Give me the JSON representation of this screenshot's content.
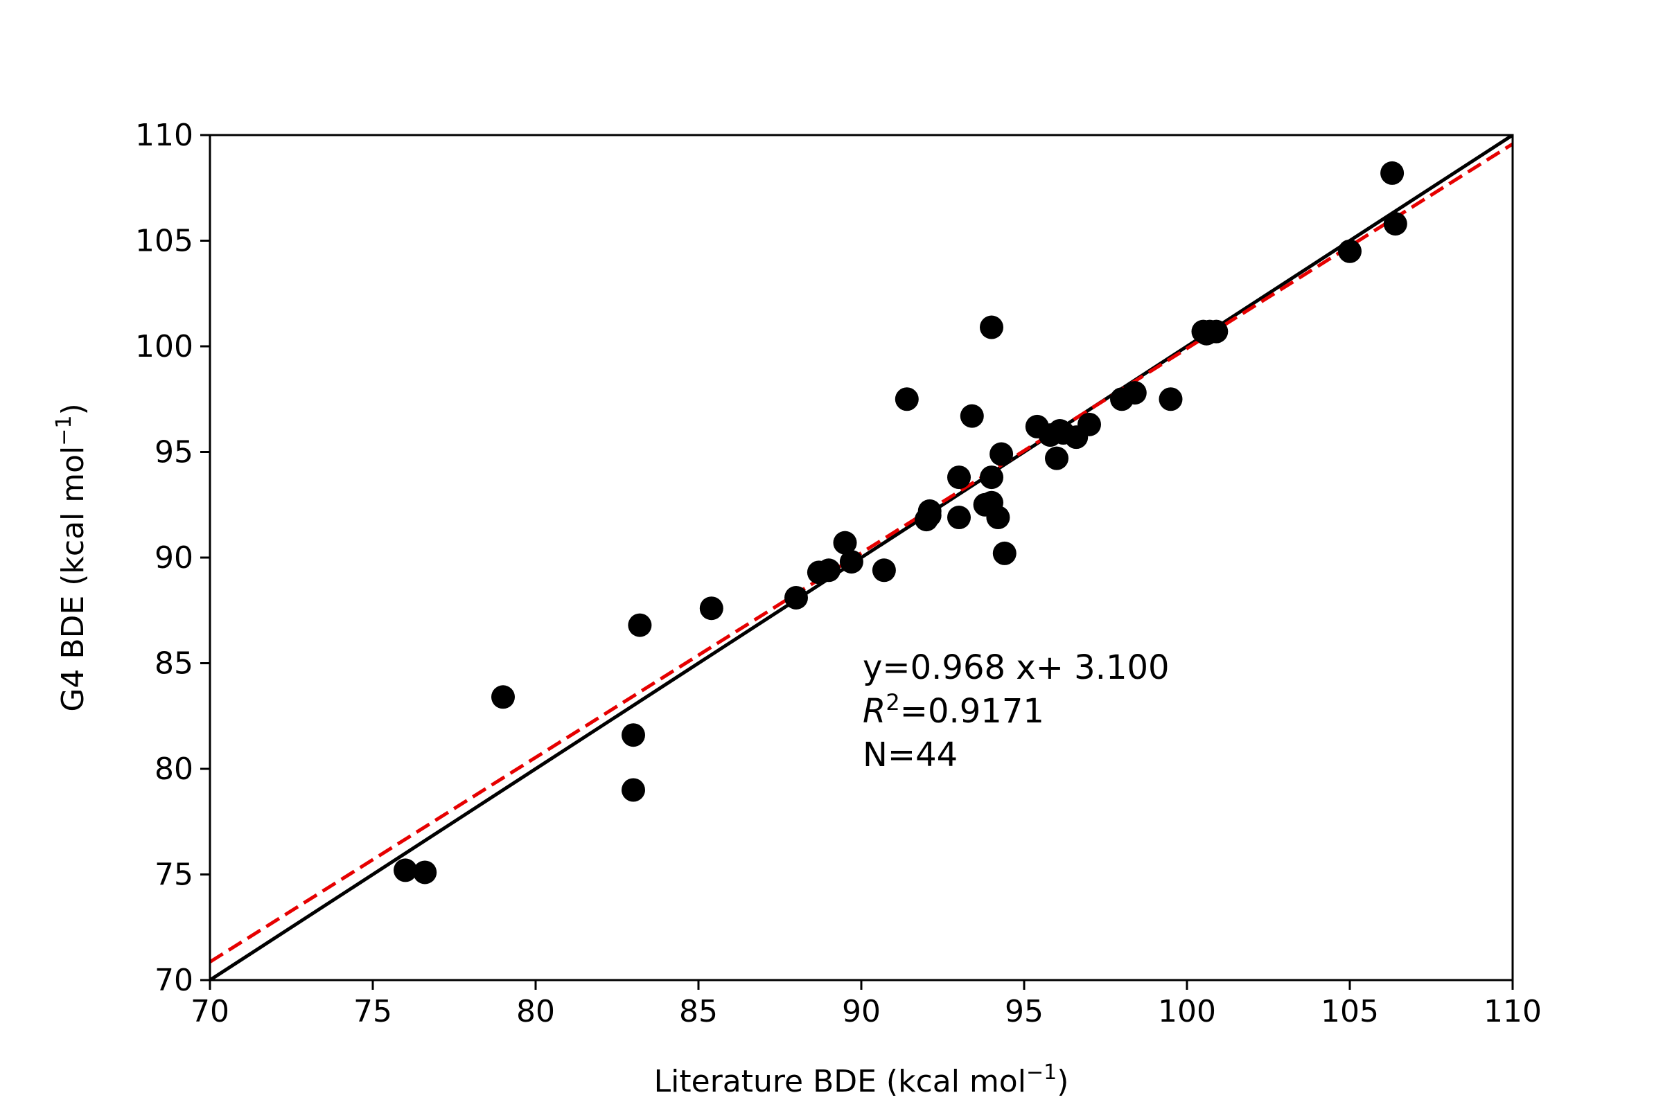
{
  "chart_data": {
    "type": "scatter",
    "xlabel": "Literature BDE (kcal mol",
    "xlabel_sup": "−1",
    "xlabel_tail": ")",
    "ylabel": "G4 BDE (kcal mol",
    "ylabel_sup": "−1",
    "ylabel_tail": ")",
    "xlim": [
      70,
      110
    ],
    "ylim": [
      70,
      110
    ],
    "xticks": [
      70,
      75,
      80,
      85,
      90,
      95,
      100,
      105,
      110
    ],
    "yticks": [
      70,
      75,
      80,
      85,
      90,
      95,
      100,
      105,
      110
    ],
    "grid": false,
    "legend": "none",
    "annotation": {
      "fit_text": "y=0.968 x+ 3.100",
      "r2_symbol": "R",
      "r2_sup": "2",
      "r2_value": "=0.9171",
      "n_text": "N=44"
    },
    "reference_line": {
      "style": "solid",
      "color": "#000000",
      "slope": 1.0,
      "intercept": 0.0
    },
    "fit_line": {
      "style": "dashed",
      "color": "#e60000",
      "slope": 0.968,
      "intercept": 3.1
    },
    "points_color": "#000000",
    "points": [
      [
        76.0,
        75.2
      ],
      [
        76.6,
        75.1
      ],
      [
        79.0,
        83.4
      ],
      [
        83.0,
        81.6
      ],
      [
        83.0,
        79.0
      ],
      [
        83.2,
        86.8
      ],
      [
        85.4,
        87.6
      ],
      [
        88.0,
        88.1
      ],
      [
        88.7,
        89.3
      ],
      [
        89.0,
        89.4
      ],
      [
        89.5,
        90.7
      ],
      [
        89.7,
        89.8
      ],
      [
        90.7,
        89.4
      ],
      [
        91.4,
        97.5
      ],
      [
        92.0,
        91.8
      ],
      [
        92.1,
        92.2
      ],
      [
        93.0,
        93.8
      ],
      [
        93.0,
        91.9
      ],
      [
        93.4,
        96.7
      ],
      [
        93.8,
        92.5
      ],
      [
        94.0,
        100.9
      ],
      [
        94.0,
        93.8
      ],
      [
        94.0,
        92.6
      ],
      [
        94.2,
        91.9
      ],
      [
        94.3,
        94.9
      ],
      [
        94.4,
        90.2
      ],
      [
        95.4,
        96.2
      ],
      [
        95.8,
        95.8
      ],
      [
        96.0,
        94.7
      ],
      [
        96.2,
        95.9
      ],
      [
        96.6,
        95.7
      ],
      [
        97.0,
        96.3
      ],
      [
        98.0,
        97.5
      ],
      [
        98.4,
        97.8
      ],
      [
        99.5,
        97.5
      ],
      [
        100.5,
        100.7
      ],
      [
        100.6,
        100.6
      ],
      [
        100.9,
        100.7
      ],
      [
        105.0,
        104.5
      ],
      [
        106.3,
        108.2
      ],
      [
        106.4,
        105.8
      ],
      [
        100.7,
        100.7
      ],
      [
        96.1,
        96.0
      ],
      [
        92.1,
        92.0
      ]
    ]
  }
}
